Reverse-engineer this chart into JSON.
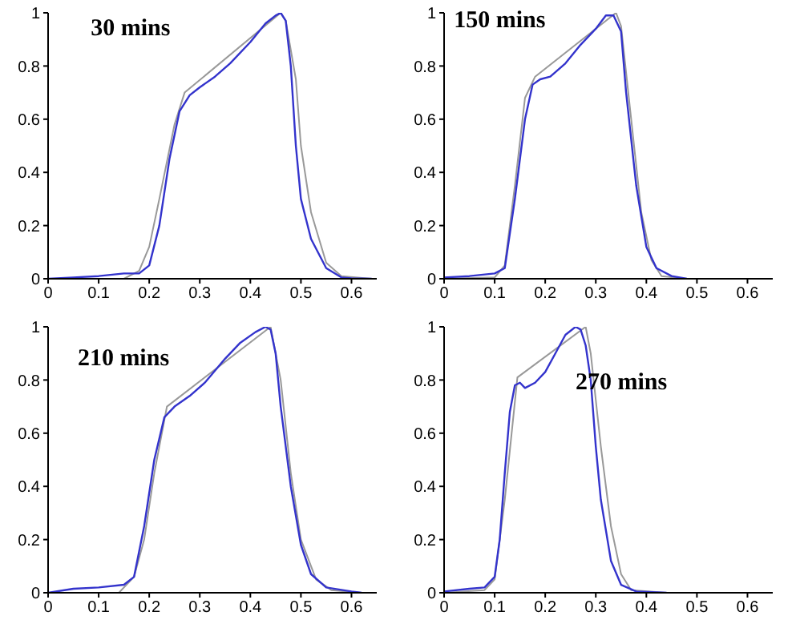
{
  "chart_data": [
    {
      "type": "line",
      "annotations": [
        "30 mins"
      ],
      "xlim": [
        0,
        0.65
      ],
      "xticks": [
        0,
        0.1,
        0.2,
        0.3,
        0.4,
        0.5,
        0.6
      ],
      "ylim": [
        0,
        1
      ],
      "yticks": [
        0,
        0.2,
        0.4,
        0.6,
        0.8,
        1
      ],
      "series": [
        {
          "color": "#999999",
          "x": [
            0,
            0.15,
            0.18,
            0.2,
            0.22,
            0.25,
            0.27,
            0.46,
            0.47,
            0.49,
            0.5,
            0.52,
            0.55,
            0.58,
            0.64
          ],
          "values": [
            0,
            0,
            0.03,
            0.12,
            0.3,
            0.58,
            0.7,
            1.0,
            0.97,
            0.75,
            0.5,
            0.25,
            0.06,
            0.01,
            0
          ]
        },
        {
          "color": "#3333cc",
          "x": [
            0,
            0.05,
            0.1,
            0.15,
            0.18,
            0.2,
            0.22,
            0.24,
            0.26,
            0.28,
            0.3,
            0.33,
            0.36,
            0.4,
            0.43,
            0.45,
            0.46,
            0.47,
            0.48,
            0.49,
            0.5,
            0.52,
            0.55,
            0.58,
            0.6,
            0.64
          ],
          "values": [
            0,
            0.005,
            0.01,
            0.02,
            0.02,
            0.05,
            0.2,
            0.45,
            0.63,
            0.69,
            0.72,
            0.76,
            0.81,
            0.89,
            0.96,
            0.99,
            1.0,
            0.97,
            0.8,
            0.5,
            0.3,
            0.15,
            0.04,
            0.005,
            0.002,
            0
          ]
        }
      ]
    },
    {
      "type": "line",
      "annotations": [
        "150 mins"
      ],
      "xlim": [
        0,
        0.65
      ],
      "xticks": [
        0,
        0.1,
        0.2,
        0.3,
        0.4,
        0.5,
        0.6
      ],
      "ylim": [
        0,
        1
      ],
      "yticks": [
        0,
        0.2,
        0.4,
        0.6,
        0.8,
        1
      ],
      "series": [
        {
          "color": "#999999",
          "x": [
            0,
            0.1,
            0.12,
            0.14,
            0.16,
            0.18,
            0.34,
            0.35,
            0.37,
            0.39,
            0.41,
            0.43,
            0.48
          ],
          "values": [
            0,
            0.005,
            0.05,
            0.35,
            0.68,
            0.76,
            1.0,
            0.95,
            0.6,
            0.25,
            0.07,
            0.01,
            0
          ]
        },
        {
          "color": "#3333cc",
          "x": [
            0,
            0.05,
            0.1,
            0.12,
            0.14,
            0.16,
            0.175,
            0.19,
            0.21,
            0.24,
            0.27,
            0.3,
            0.32,
            0.335,
            0.35,
            0.36,
            0.38,
            0.4,
            0.42,
            0.45,
            0.48
          ],
          "values": [
            0.005,
            0.01,
            0.02,
            0.04,
            0.3,
            0.6,
            0.73,
            0.75,
            0.76,
            0.81,
            0.88,
            0.94,
            0.99,
            0.99,
            0.93,
            0.7,
            0.35,
            0.12,
            0.04,
            0.01,
            0
          ]
        }
      ]
    },
    {
      "type": "line",
      "annotations": [
        "210 mins"
      ],
      "xlim": [
        0,
        0.65
      ],
      "xticks": [
        0,
        0.1,
        0.2,
        0.3,
        0.4,
        0.5,
        0.6
      ],
      "ylim": [
        0,
        1
      ],
      "yticks": [
        0,
        0.2,
        0.4,
        0.6,
        0.8,
        1
      ],
      "series": [
        {
          "color": "#999999",
          "x": [
            0,
            0.14,
            0.17,
            0.19,
            0.21,
            0.235,
            0.44,
            0.46,
            0.48,
            0.5,
            0.53,
            0.56,
            0.62
          ],
          "values": [
            0,
            0,
            0.06,
            0.2,
            0.45,
            0.7,
            1.0,
            0.8,
            0.45,
            0.2,
            0.05,
            0.01,
            0
          ]
        },
        {
          "color": "#3333cc",
          "x": [
            0,
            0.05,
            0.1,
            0.15,
            0.17,
            0.19,
            0.21,
            0.23,
            0.25,
            0.28,
            0.31,
            0.35,
            0.38,
            0.41,
            0.43,
            0.44,
            0.45,
            0.46,
            0.48,
            0.5,
            0.52,
            0.55,
            0.6,
            0.62
          ],
          "values": [
            0,
            0.015,
            0.02,
            0.03,
            0.06,
            0.25,
            0.5,
            0.66,
            0.7,
            0.74,
            0.79,
            0.88,
            0.94,
            0.98,
            1.0,
            0.99,
            0.9,
            0.7,
            0.4,
            0.18,
            0.07,
            0.02,
            0.005,
            0
          ]
        }
      ]
    },
    {
      "type": "line",
      "annotations": [
        "270 mins"
      ],
      "xlim": [
        0,
        0.65
      ],
      "xticks": [
        0,
        0.1,
        0.2,
        0.3,
        0.4,
        0.5,
        0.6
      ],
      "ylim": [
        0,
        1
      ],
      "yticks": [
        0,
        0.2,
        0.4,
        0.6,
        0.8,
        1
      ],
      "series": [
        {
          "color": "#999999",
          "x": [
            0,
            0.08,
            0.1,
            0.12,
            0.145,
            0.28,
            0.29,
            0.31,
            0.33,
            0.35,
            0.37,
            0.44
          ],
          "values": [
            0,
            0.01,
            0.05,
            0.35,
            0.81,
            1.0,
            0.9,
            0.55,
            0.25,
            0.07,
            0.01,
            0
          ]
        },
        {
          "color": "#3333cc",
          "x": [
            0,
            0.05,
            0.08,
            0.1,
            0.11,
            0.12,
            0.13,
            0.14,
            0.15,
            0.16,
            0.18,
            0.2,
            0.22,
            0.24,
            0.26,
            0.27,
            0.28,
            0.29,
            0.3,
            0.31,
            0.33,
            0.35,
            0.38,
            0.44
          ],
          "values": [
            0.005,
            0.015,
            0.02,
            0.06,
            0.2,
            0.45,
            0.68,
            0.78,
            0.79,
            0.77,
            0.79,
            0.83,
            0.9,
            0.97,
            1.0,
            0.99,
            0.93,
            0.8,
            0.55,
            0.35,
            0.12,
            0.03,
            0.005,
            0
          ]
        }
      ]
    }
  ]
}
